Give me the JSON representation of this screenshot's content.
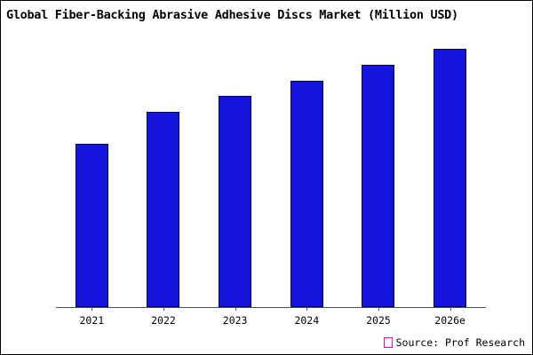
{
  "header": {
    "title": "Global Fiber-Backing Abrasive Adhesive Discs Market (Million USD)"
  },
  "source": {
    "label": "Source: Prof Research"
  },
  "colors": {
    "bar_fill": "#1414dd",
    "bar_border": "#000066",
    "axis": "#4d4d4d",
    "marker_border": "#ff00c8"
  },
  "chart_data": {
    "type": "bar",
    "title": "Global Fiber-Backing Abrasive Adhesive Discs Market (Million USD)",
    "categories": [
      "2021",
      "2022",
      "2023",
      "2024",
      "2025",
      "2026e"
    ],
    "values": [
      62,
      74,
      80,
      86,
      92,
      98
    ],
    "xlabel": "",
    "ylabel": "",
    "ylim": [
      0,
      100
    ],
    "grid": false,
    "legend": "none",
    "y_axis_labels_visible": false,
    "annotation": "Source: Prof Research"
  }
}
